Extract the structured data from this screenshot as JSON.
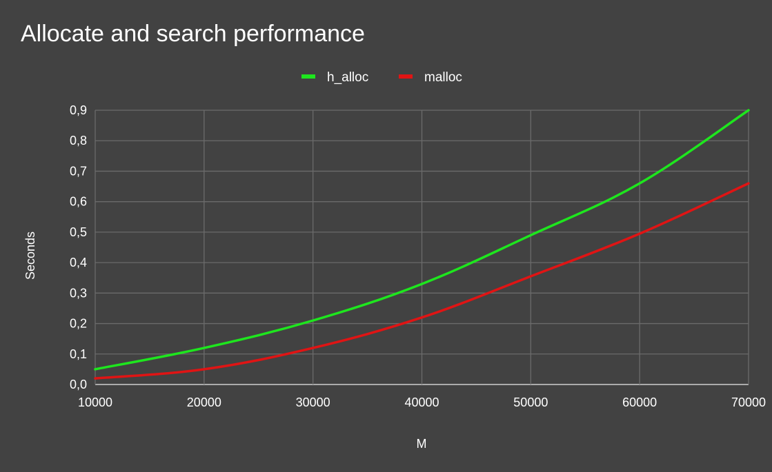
{
  "chart_data": {
    "type": "line",
    "title": "Allocate and search performance",
    "xlabel": "M",
    "ylabel": "Seconds",
    "x": [
      10000,
      20000,
      30000,
      40000,
      50000,
      60000,
      70000
    ],
    "x_tick_labels": [
      "10000",
      "20000",
      "30000",
      "40000",
      "50000",
      "60000",
      "70000"
    ],
    "y_tick_labels": [
      "0,0",
      "0,1",
      "0,2",
      "0,3",
      "0,4",
      "0,5",
      "0,6",
      "0,7",
      "0,8",
      "0,9"
    ],
    "y_ticks": [
      0,
      0.1,
      0.2,
      0.3,
      0.4,
      0.5,
      0.6,
      0.7,
      0.8,
      0.9
    ],
    "xlim": [
      10000,
      70000
    ],
    "ylim": [
      0,
      0.9
    ],
    "grid": true,
    "legend_position": "top",
    "background_color": "#424242",
    "grid_color": "#6b6b6b",
    "series": [
      {
        "name": "h_alloc",
        "color": "#1ee61e",
        "values": [
          0.05,
          0.12,
          0.21,
          0.33,
          0.49,
          0.66,
          0.9
        ]
      },
      {
        "name": "malloc",
        "color": "#e01414",
        "values": [
          0.02,
          0.05,
          0.12,
          0.22,
          0.355,
          0.495,
          0.66
        ]
      }
    ]
  }
}
